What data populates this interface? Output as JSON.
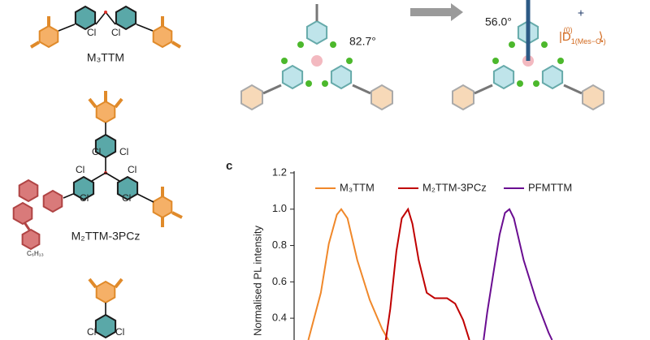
{
  "structures": {
    "label_top": "M₃TTM",
    "label_middle": "M₂TTM-3PCz",
    "chain": "C₆H₁₃",
    "cl": "Cl"
  },
  "geometry": {
    "angle_left": "82.7°",
    "angle_right": "56.0°",
    "plus": "+",
    "ket": {
      "open": "|D",
      "sub": "1(Mes−C•)",
      "sup": "(0)",
      "close": "⟩"
    }
  },
  "chart_data": {
    "type": "line",
    "panel_label": "c",
    "y_label": "Normalised PL intensity",
    "xlim": [
      500,
      900
    ],
    "ylim": [
      0.28,
      1.2
    ],
    "yticks": [
      {
        "value": 0.4,
        "label": "0.4"
      },
      {
        "value": 0.6,
        "label": "0.6"
      },
      {
        "value": 0.8,
        "label": "0.8"
      },
      {
        "value": 1,
        "label": "1.0"
      },
      {
        "value": 1.2,
        "label": "1.2"
      }
    ],
    "series": [
      {
        "name": "M₃TTM",
        "color": "#f0882a",
        "x": [
          516,
          530,
          539,
          548,
          553,
          560,
          571,
          585,
          599,
          606
        ],
        "values": [
          0.28,
          0.54,
          0.81,
          0.97,
          1.0,
          0.95,
          0.72,
          0.5,
          0.34,
          0.28
        ]
      },
      {
        "name": "M₂TTM-3PCz",
        "color": "#c00000",
        "x": [
          603,
          608,
          615,
          621,
          628,
          633,
          640,
          649,
          658,
          672,
          681,
          690,
          697
        ],
        "values": [
          0.28,
          0.45,
          0.77,
          0.95,
          1.0,
          0.92,
          0.72,
          0.54,
          0.51,
          0.51,
          0.48,
          0.39,
          0.28
        ]
      },
      {
        "name": "PFMTTM",
        "color": "#6a0d91",
        "x": [
          713,
          717,
          725,
          731,
          737,
          742,
          747,
          758,
          772,
          786,
          790
        ],
        "values": [
          0.28,
          0.43,
          0.68,
          0.86,
          0.98,
          1.0,
          0.95,
          0.72,
          0.5,
          0.32,
          0.28
        ]
      }
    ]
  }
}
